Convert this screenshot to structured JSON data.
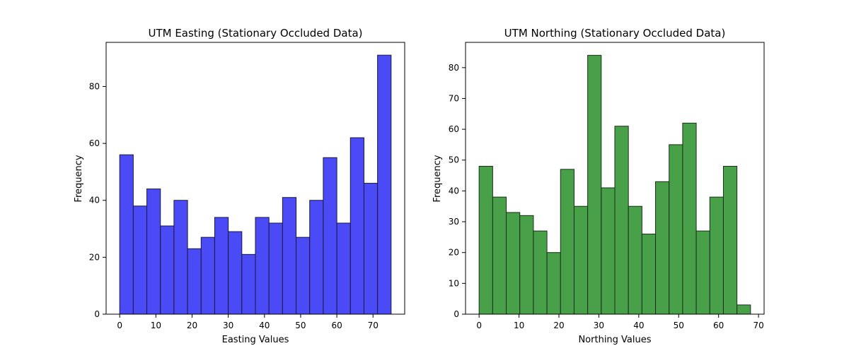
{
  "chart_data": [
    {
      "type": "bar",
      "title": "UTM Easting (Stationary Occluded Data)",
      "xlabel": "Easting Values",
      "ylabel": "Frequency",
      "color": "#4a4af7",
      "edge_color": "#1a1a3a",
      "bin_width": 3.75,
      "bin_start": 0,
      "values": [
        56,
        38,
        44,
        31,
        40,
        23,
        27,
        34,
        29,
        21,
        34,
        32,
        41,
        27,
        40,
        55,
        32,
        62,
        46,
        91
      ],
      "xlim": [
        -3.75,
        78.75
      ],
      "ylim": [
        0,
        95.5
      ],
      "xticks": [
        0,
        10,
        20,
        30,
        40,
        50,
        60,
        70
      ],
      "yticks": [
        0,
        20,
        40,
        60,
        80
      ],
      "grid": false
    },
    {
      "type": "bar",
      "title": "UTM Northing (Stationary Occluded Data)",
      "xlabel": "Northing Values",
      "ylabel": "Frequency",
      "color": "#48a048",
      "edge_color": "#1a2f1a",
      "bin_width": 3.4,
      "bin_start": 0,
      "values": [
        48,
        38,
        33,
        32,
        27,
        20,
        47,
        35,
        84,
        41,
        61,
        35,
        26,
        43,
        55,
        62,
        27,
        38,
        48,
        3
      ],
      "xlim": [
        -3.4,
        71.4
      ],
      "ylim": [
        0,
        88.2
      ],
      "xticks": [
        0,
        10,
        20,
        30,
        40,
        50,
        60,
        70
      ],
      "yticks": [
        0,
        10,
        20,
        30,
        40,
        50,
        60,
        70,
        80
      ],
      "grid": false
    }
  ]
}
